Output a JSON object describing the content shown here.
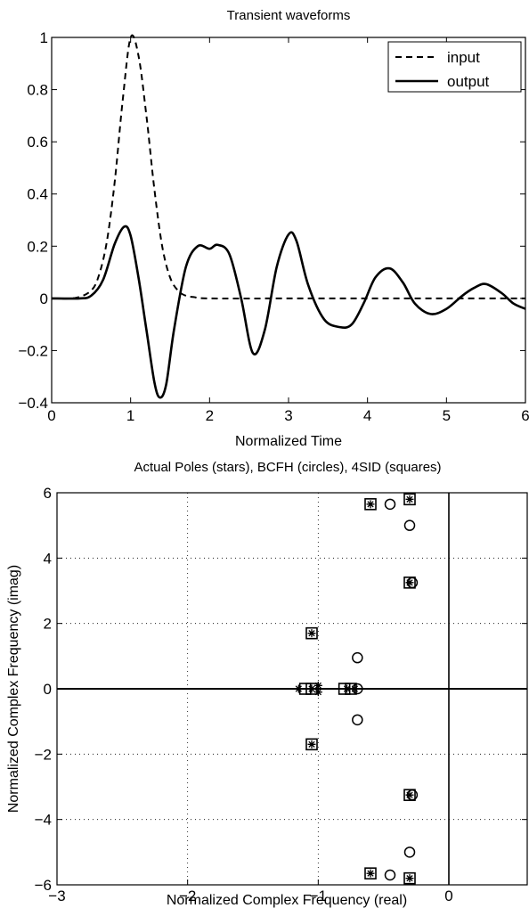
{
  "chart_data": [
    {
      "type": "line",
      "title": "Transient waveforms",
      "xlabel": "Normalized Time",
      "ylabel": "",
      "xlim": [
        0,
        6
      ],
      "ylim": [
        -0.4,
        1
      ],
      "xticks": [
        0,
        1,
        2,
        3,
        4,
        5,
        6
      ],
      "yticks": [
        -0.4,
        -0.2,
        0,
        0.2,
        0.4,
        0.6,
        0.8,
        1
      ],
      "grid": false,
      "legend_position": "top-right",
      "series": [
        {
          "name": "input",
          "style": "dashed",
          "x": [
            0,
            0.3,
            0.5,
            0.6,
            0.7,
            0.8,
            0.9,
            1.0,
            1.1,
            1.2,
            1.3,
            1.4,
            1.5,
            1.6,
            1.7,
            1.8,
            2.0,
            3.0,
            4.0,
            5.0,
            6.0
          ],
          "y": [
            0,
            0.002,
            0.03,
            0.09,
            0.22,
            0.45,
            0.76,
            1.0,
            0.93,
            0.7,
            0.42,
            0.2,
            0.08,
            0.03,
            0.01,
            0.005,
            0,
            0,
            0,
            0,
            0
          ]
        },
        {
          "name": "output",
          "style": "solid",
          "x": [
            0,
            0.35,
            0.5,
            0.65,
            0.8,
            0.92,
            1.0,
            1.1,
            1.2,
            1.3,
            1.37,
            1.45,
            1.55,
            1.7,
            1.85,
            2.0,
            2.1,
            2.25,
            2.4,
            2.55,
            2.7,
            2.85,
            3.0,
            3.1,
            3.25,
            3.45,
            3.65,
            3.8,
            3.95,
            4.1,
            4.28,
            4.45,
            4.6,
            4.8,
            5.0,
            5.2,
            5.35,
            5.5,
            5.7,
            5.85,
            6.0
          ],
          "y": [
            0,
            0.0,
            0.01,
            0.07,
            0.21,
            0.275,
            0.24,
            0.08,
            -0.12,
            -0.32,
            -0.38,
            -0.33,
            -0.12,
            0.12,
            0.2,
            0.19,
            0.205,
            0.17,
            0.0,
            -0.21,
            -0.12,
            0.12,
            0.245,
            0.22,
            0.05,
            -0.08,
            -0.11,
            -0.1,
            -0.02,
            0.08,
            0.115,
            0.06,
            -0.02,
            -0.06,
            -0.04,
            0.01,
            0.04,
            0.055,
            0.02,
            -0.02,
            -0.04
          ]
        }
      ]
    },
    {
      "type": "scatter",
      "title": "Actual Poles (stars), BCFH (circles), 4SID (squares)",
      "xlabel": "Normalized Complex Frequency (real)",
      "ylabel": "Normalized Complex Frequency (imag)",
      "xlim": [
        -3,
        0.6
      ],
      "ylim": [
        -6,
        6
      ],
      "xticks": [
        -3,
        -2,
        -1,
        0
      ],
      "yticks": [
        -6,
        -4,
        -2,
        0,
        2,
        4,
        6
      ],
      "grid": true,
      "grid_style": "dotted",
      "zero_lines": true,
      "series": [
        {
          "name": "stars",
          "marker": "star",
          "points": [
            [
              -0.6,
              5.65
            ],
            [
              -0.3,
              5.8
            ],
            [
              -0.3,
              3.25
            ],
            [
              -1.05,
              1.7
            ],
            [
              -1.05,
              -1.7
            ],
            [
              -0.3,
              -3.25
            ],
            [
              -0.6,
              -5.65
            ],
            [
              -0.3,
              -5.8
            ],
            [
              -1.15,
              0
            ],
            [
              -1.05,
              0
            ],
            [
              -1.0,
              0.1
            ],
            [
              -1.0,
              -0.1
            ],
            [
              -0.78,
              0
            ],
            [
              -0.72,
              0
            ]
          ]
        },
        {
          "name": "circles",
          "marker": "circle",
          "points": [
            [
              -0.45,
              5.65
            ],
            [
              -0.3,
              5.0
            ],
            [
              -0.28,
              3.25
            ],
            [
              -0.7,
              0.95
            ],
            [
              -0.7,
              -0.95
            ],
            [
              -0.28,
              -3.25
            ],
            [
              -0.3,
              -5.0
            ],
            [
              -0.45,
              -5.7
            ],
            [
              -0.7,
              0
            ]
          ]
        },
        {
          "name": "squares",
          "marker": "square",
          "points": [
            [
              -0.6,
              5.65
            ],
            [
              -0.3,
              5.8
            ],
            [
              -0.3,
              3.25
            ],
            [
              -1.05,
              1.7
            ],
            [
              -1.05,
              -1.7
            ],
            [
              -0.3,
              -3.25
            ],
            [
              -0.6,
              -5.65
            ],
            [
              -0.3,
              -5.8
            ],
            [
              -1.1,
              0
            ],
            [
              -1.05,
              0
            ],
            [
              -0.8,
              0
            ],
            [
              -0.75,
              0
            ]
          ]
        }
      ]
    }
  ]
}
